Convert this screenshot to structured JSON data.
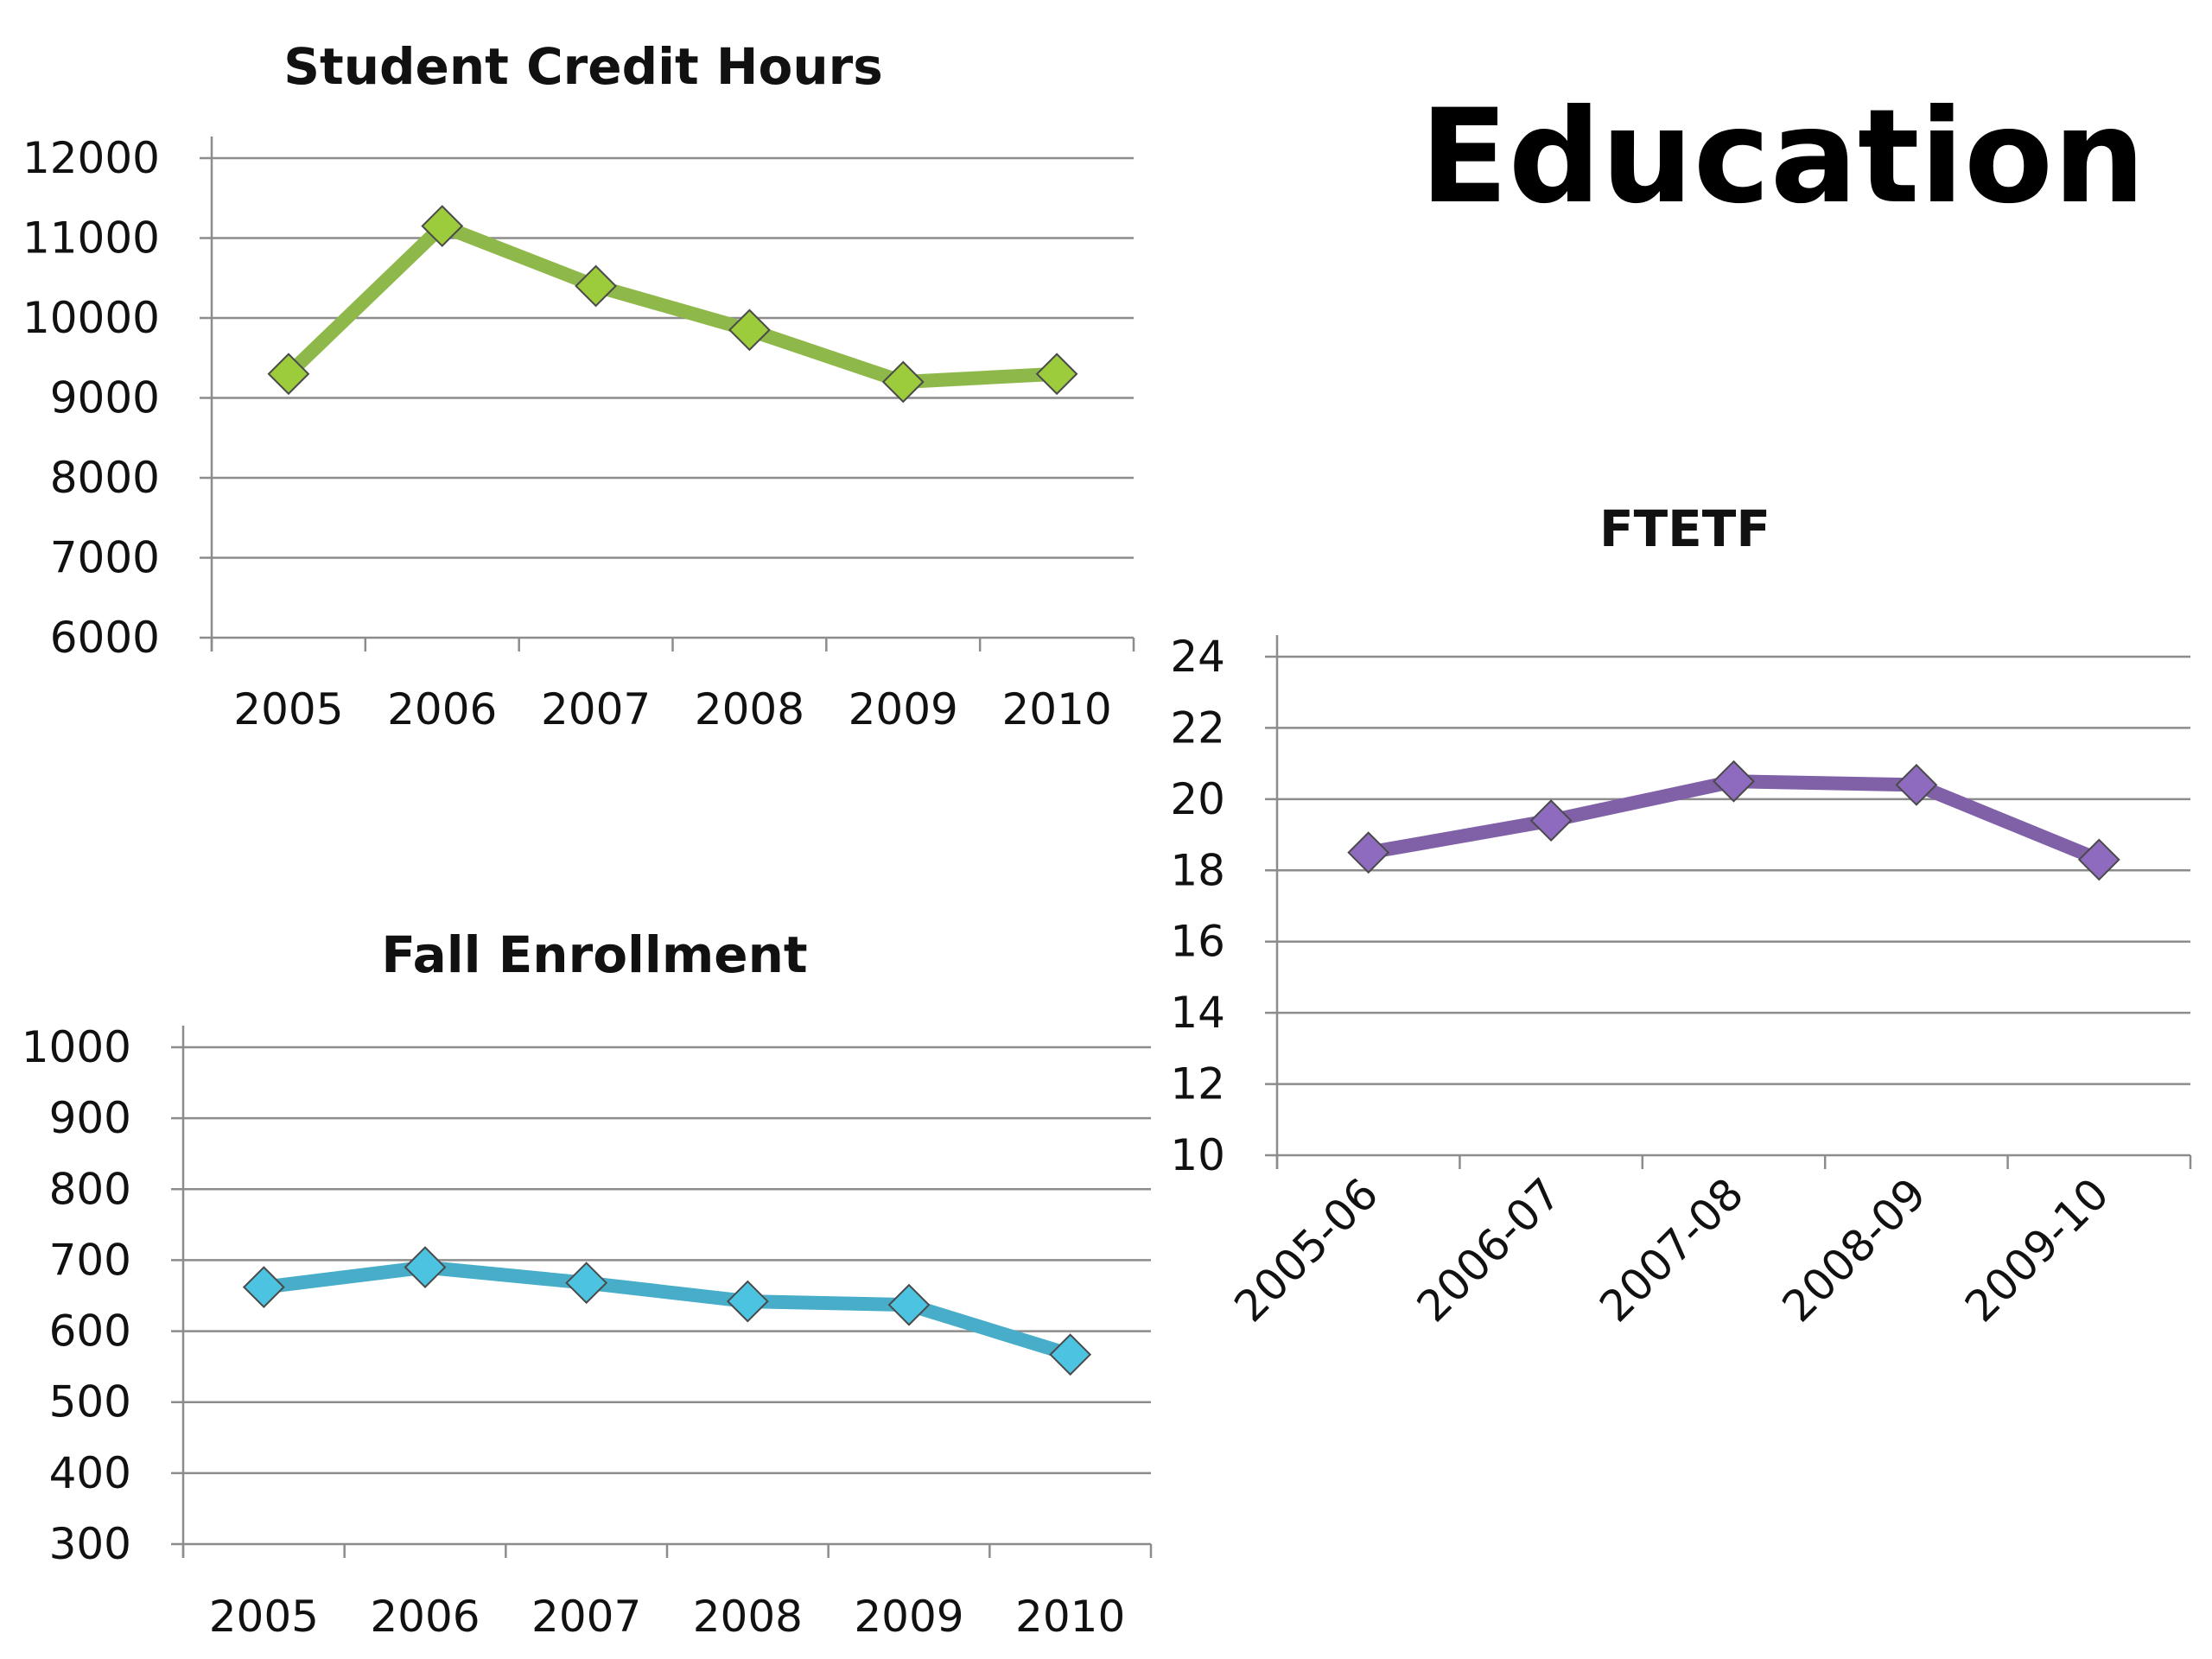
{
  "page": {
    "title": "Education"
  },
  "chart_data": [
    {
      "id": "sch",
      "type": "line",
      "title": "Student Credit Hours",
      "categories": [
        "2005",
        "2006",
        "2007",
        "2008",
        "2009",
        "2010"
      ],
      "values": [
        9300,
        11150,
        10400,
        9850,
        9200,
        9300
      ],
      "ylim": [
        6000,
        12000
      ],
      "yticks": [
        "6000",
        "7000",
        "8000",
        "9000",
        "10000",
        "11000",
        "12000"
      ],
      "grid": true,
      "color": "#8fb84a",
      "marker_color": "#9ccb3b"
    },
    {
      "id": "fall",
      "type": "line",
      "title": "Fall Enrollment",
      "categories": [
        "2005",
        "2006",
        "2007",
        "2008",
        "2009",
        "2010"
      ],
      "values": [
        662,
        690,
        668,
        642,
        637,
        567
      ],
      "ylim": [
        300,
        1000
      ],
      "yticks": [
        "300",
        "400",
        "500",
        "600",
        "700",
        "800",
        "900",
        "1000"
      ],
      "grid": true,
      "color": "#47adc9",
      "marker_color": "#4cc3e0"
    },
    {
      "id": "ftetf",
      "type": "line",
      "title": "FTETF",
      "categories": [
        "2005-06",
        "2006-07",
        "2007-08",
        "2008-09",
        "2009-10"
      ],
      "values": [
        18.5,
        19.4,
        20.5,
        20.4,
        18.3
      ],
      "ylim": [
        10,
        24
      ],
      "yticks": [
        "10",
        "12",
        "14",
        "16",
        "18",
        "20",
        "22",
        "24"
      ],
      "grid": true,
      "color": "#8061a8",
      "marker_color": "#8e6bbf"
    }
  ]
}
